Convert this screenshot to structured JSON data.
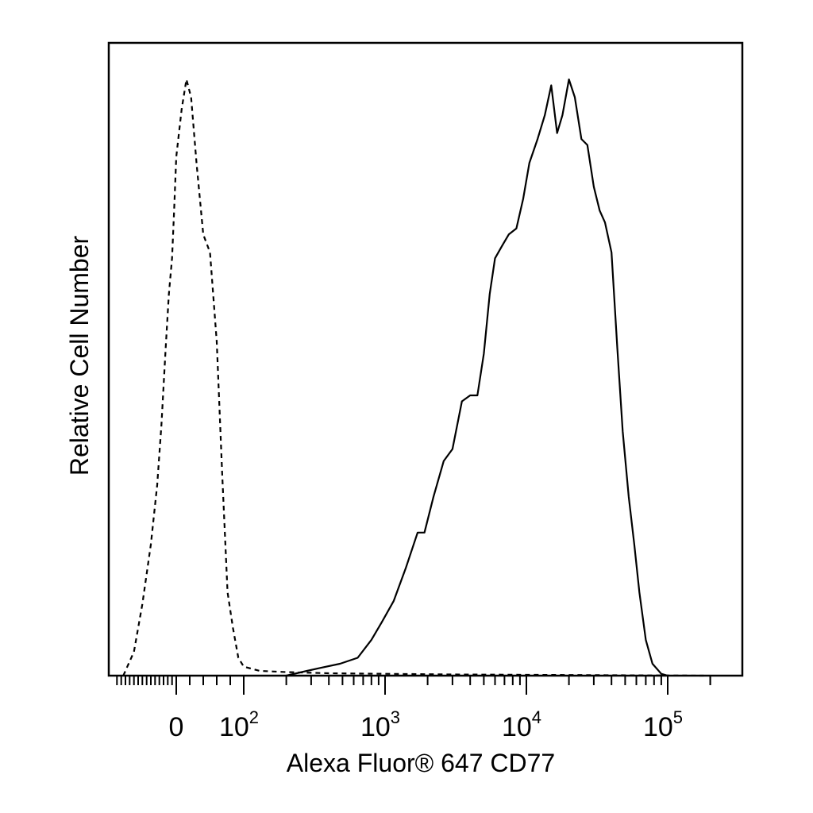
{
  "chart_data": {
    "type": "area",
    "title": "",
    "xlabel": "Alexa Fluor® 647 CD77",
    "ylabel": "Relative Cell Number",
    "x_scale": "biexponential (logicle)",
    "xlim": [
      -300,
      250000
    ],
    "ylim": [
      0,
      1
    ],
    "y_ticks_labeled": false,
    "grid": false,
    "legend": "none",
    "x_tick_labels": [
      {
        "value": 0,
        "base": "0",
        "exp": ""
      },
      {
        "value": 100,
        "base": "10",
        "exp": "2"
      },
      {
        "value": 1000,
        "base": "10",
        "exp": "3"
      },
      {
        "value": 10000,
        "base": "10",
        "exp": "4"
      },
      {
        "value": 100000,
        "base": "10",
        "exp": "5"
      }
    ],
    "series": [
      {
        "style": "dashed",
        "points": [
          [
            -250,
            0.0
          ],
          [
            -200,
            0.04
          ],
          [
            -160,
            0.12
          ],
          [
            -120,
            0.22
          ],
          [
            -90,
            0.32
          ],
          [
            -70,
            0.42
          ],
          [
            -50,
            0.55
          ],
          [
            -35,
            0.64
          ],
          [
            -20,
            0.7
          ],
          [
            -10,
            0.78
          ],
          [
            0,
            0.87
          ],
          [
            8,
            0.95
          ],
          [
            15,
            1.0
          ],
          [
            22,
            0.97
          ],
          [
            30,
            0.86
          ],
          [
            40,
            0.74
          ],
          [
            50,
            0.71
          ],
          [
            60,
            0.56
          ],
          [
            68,
            0.34
          ],
          [
            76,
            0.14
          ],
          [
            84,
            0.08
          ],
          [
            92,
            0.03
          ],
          [
            100,
            0.015
          ],
          [
            130,
            0.008
          ],
          [
            200,
            0.006
          ],
          [
            400,
            0.004
          ],
          [
            1000,
            0.003
          ],
          [
            3000,
            0.002
          ],
          [
            20000,
            0.001
          ],
          [
            180000,
            0.0
          ]
        ]
      },
      {
        "style": "solid",
        "points": [
          [
            200,
            0.0
          ],
          [
            280,
            0.008
          ],
          [
            350,
            0.013
          ],
          [
            480,
            0.02
          ],
          [
            640,
            0.03
          ],
          [
            800,
            0.06
          ],
          [
            950,
            0.09
          ],
          [
            1150,
            0.125
          ],
          [
            1400,
            0.18
          ],
          [
            1700,
            0.24
          ],
          [
            1900,
            0.24
          ],
          [
            2200,
            0.3
          ],
          [
            2600,
            0.36
          ],
          [
            3000,
            0.38
          ],
          [
            3500,
            0.46
          ],
          [
            4000,
            0.47
          ],
          [
            4500,
            0.47
          ],
          [
            5000,
            0.54
          ],
          [
            5500,
            0.64
          ],
          [
            6000,
            0.7
          ],
          [
            6700,
            0.72
          ],
          [
            7500,
            0.74
          ],
          [
            8500,
            0.75
          ],
          [
            9500,
            0.8
          ],
          [
            10500,
            0.86
          ],
          [
            12000,
            0.9
          ],
          [
            13500,
            0.94
          ],
          [
            15000,
            0.99
          ],
          [
            16500,
            0.91
          ],
          [
            18000,
            0.94
          ],
          [
            20000,
            1.0
          ],
          [
            22000,
            0.97
          ],
          [
            24500,
            0.9
          ],
          [
            27000,
            0.89
          ],
          [
            30000,
            0.82
          ],
          [
            33000,
            0.78
          ],
          [
            36000,
            0.76
          ],
          [
            40000,
            0.71
          ],
          [
            44000,
            0.55
          ],
          [
            48000,
            0.41
          ],
          [
            53000,
            0.3
          ],
          [
            58000,
            0.22
          ],
          [
            63000,
            0.14
          ],
          [
            70000,
            0.06
          ],
          [
            78000,
            0.02
          ],
          [
            90000,
            0.003
          ],
          [
            100000,
            0.0
          ]
        ]
      }
    ]
  }
}
